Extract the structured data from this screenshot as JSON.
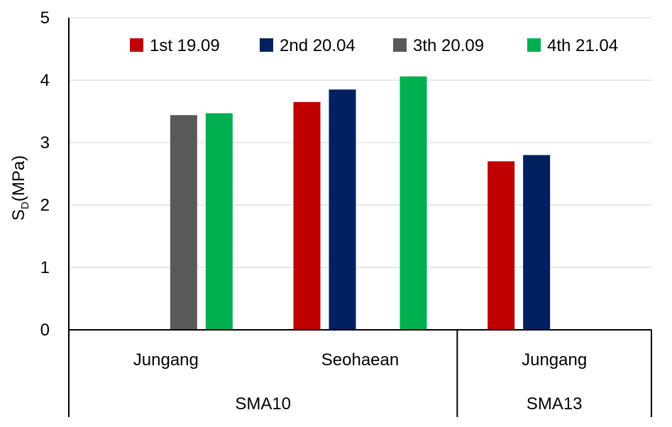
{
  "chart_data": {
    "type": "bar",
    "ylabel_main": "S",
    "ylabel_sub": "D",
    "ylabel_unit": "(MPa)",
    "ylim": [
      0,
      5
    ],
    "yticks": [
      0,
      1,
      2,
      3,
      4,
      5
    ],
    "grid": true,
    "legend_position": "top",
    "groups": [
      {
        "label": "SMA10",
        "categories": [
          "Jungang",
          "Seohaean"
        ]
      },
      {
        "label": "SMA13",
        "categories": [
          "Jungang"
        ]
      }
    ],
    "categories": [
      "Jungang",
      "Seohaean",
      "Jungang"
    ],
    "series": [
      {
        "name": "1st 19.09",
        "color": "#c00000",
        "values": [
          null,
          3.65,
          2.7
        ]
      },
      {
        "name": "2nd 20.04",
        "color": "#002060",
        "values": [
          null,
          3.85,
          2.8
        ]
      },
      {
        "name": "3th 20.09",
        "color": "#595959",
        "values": [
          3.44,
          null,
          null
        ]
      },
      {
        "name": "4th 21.04",
        "color": "#00b050",
        "values": [
          3.47,
          4.06,
          null
        ]
      }
    ]
  }
}
